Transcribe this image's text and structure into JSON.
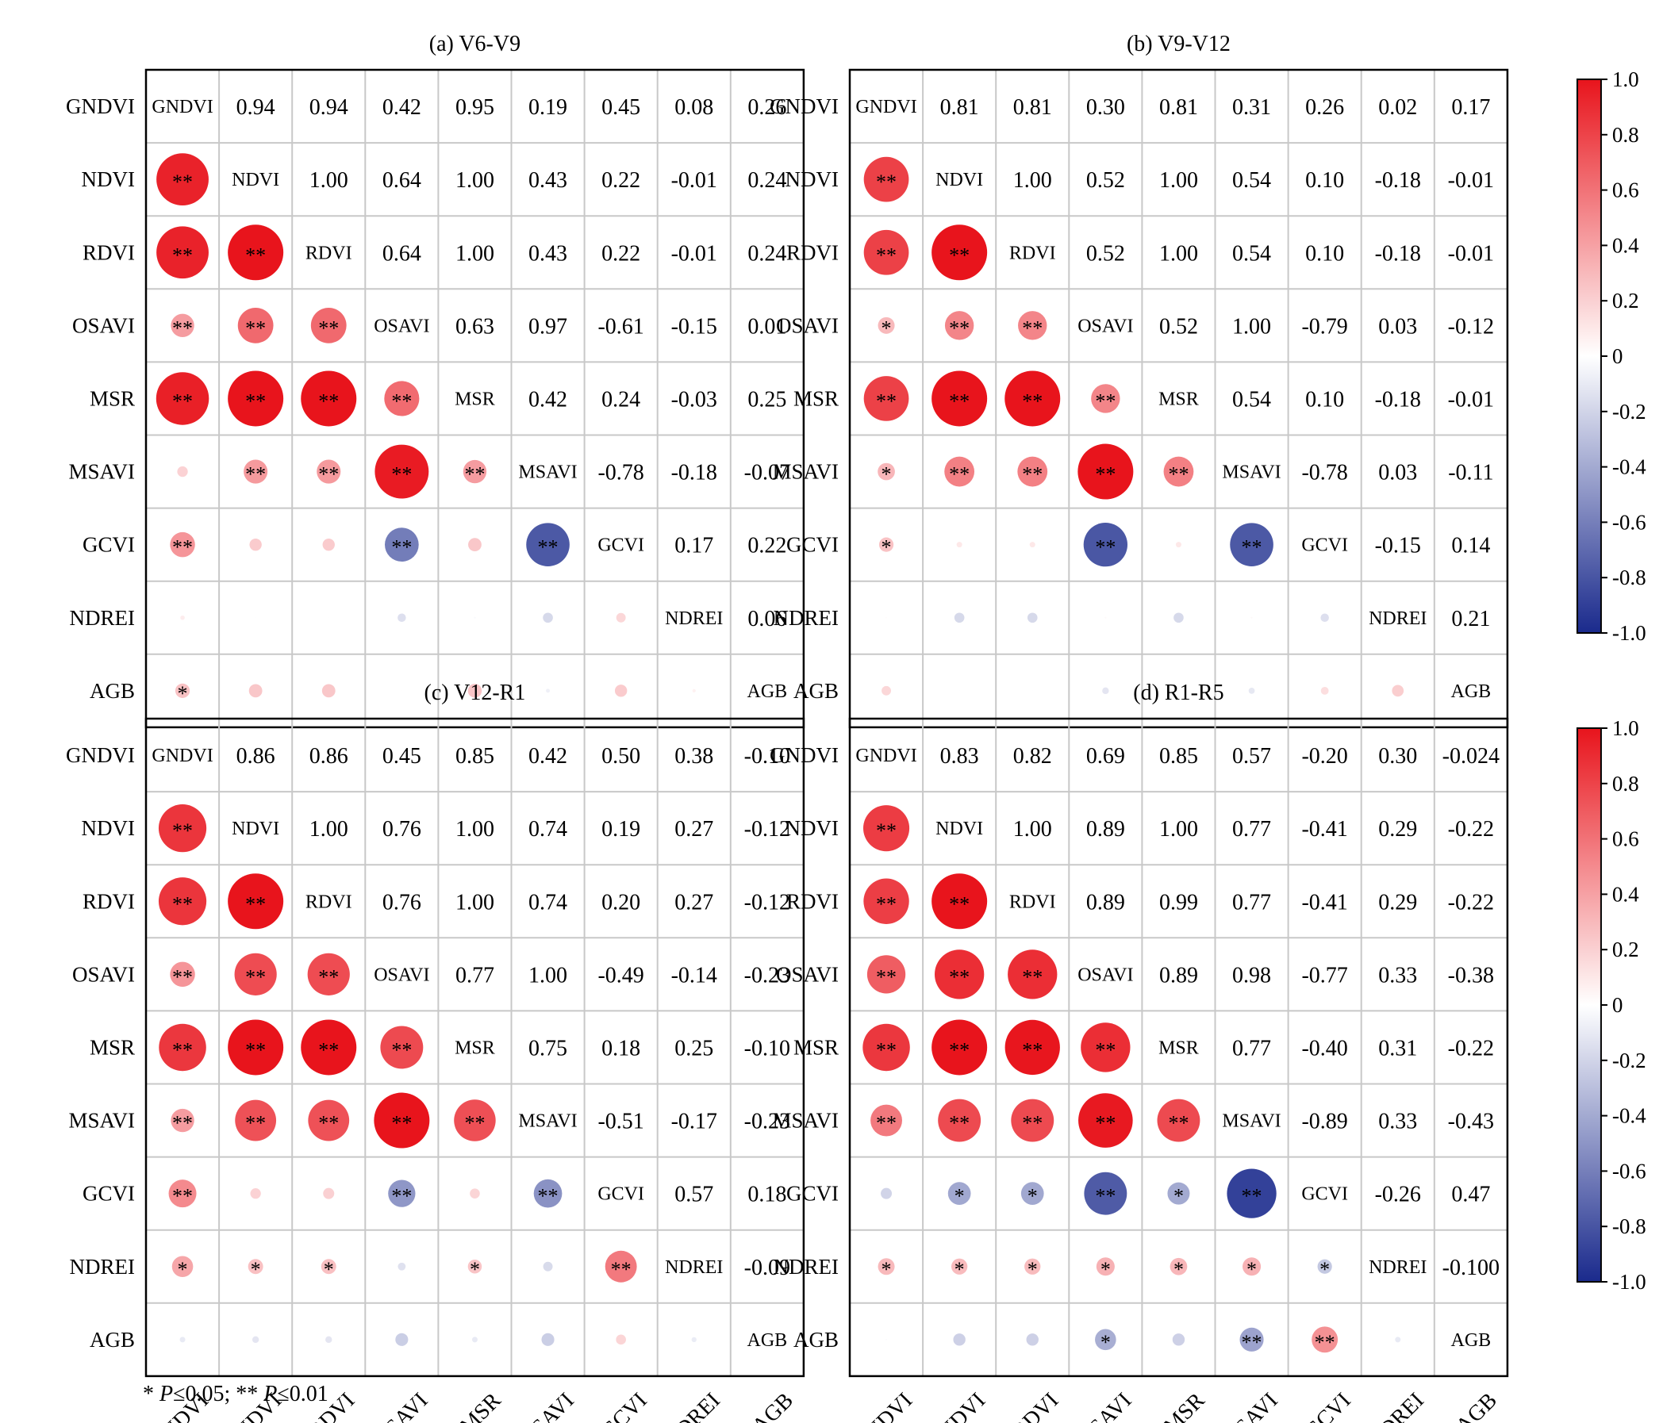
{
  "chart_data": {
    "type": "heatmap",
    "variables": [
      "GNDVI",
      "NDVI",
      "RDVI",
      "OSAVI",
      "MSR",
      "MSAVI",
      "GCVI",
      "NDREI",
      "AGB"
    ],
    "color_scale": {
      "min": -1.0,
      "max": 1.0,
      "low": "#1a2a8c",
      "mid": "#ffffff",
      "high": "#e8141c"
    },
    "colorbar_ticks": [
      "1.0",
      "0.8",
      "0.6",
      "0.4",
      "0.2",
      "0",
      "-0.2",
      "-0.4",
      "-0.6",
      "-0.8",
      "-1.0"
    ],
    "panels": [
      {
        "title": "(a) V6-V9",
        "show_colorbar": false,
        "upper": [
          [
            "0.94",
            "0.94",
            "0.42",
            "0.95",
            "0.19",
            "0.45",
            "0.08",
            "0.26"
          ],
          [
            "1.00",
            "0.64",
            "1.00",
            "0.43",
            "0.22",
            "-0.01",
            "0.24"
          ],
          [
            "0.64",
            "1.00",
            "0.43",
            "0.22",
            "-0.01",
            "0.24"
          ],
          [
            "0.63",
            "0.97",
            "-0.61",
            "-0.15",
            "0.01"
          ],
          [
            "0.42",
            "0.24",
            "-0.03",
            "0.25"
          ],
          [
            "-0.78",
            "-0.18",
            "-0.07"
          ],
          [
            "0.17",
            "0.22"
          ],
          [
            "0.06"
          ]
        ],
        "sig": [
          [],
          [
            "**"
          ],
          [
            "**",
            "**"
          ],
          [
            "**",
            "**",
            "**"
          ],
          [
            "**",
            "**",
            "**",
            "**"
          ],
          [
            "",
            "**",
            "**",
            "**",
            "**"
          ],
          [
            "**",
            "",
            "",
            "**",
            "",
            "**"
          ],
          [
            "",
            "",
            "",
            "",
            "",
            "",
            ""
          ],
          [
            "*",
            "",
            "",
            "",
            "",
            "",
            "",
            ""
          ]
        ]
      },
      {
        "title": "(b) V9-V12",
        "show_colorbar": true,
        "upper": [
          [
            "0.81",
            "0.81",
            "0.30",
            "0.81",
            "0.31",
            "0.26",
            "0.02",
            "0.17"
          ],
          [
            "1.00",
            "0.52",
            "1.00",
            "0.54",
            "0.10",
            "-0.18",
            "-0.01"
          ],
          [
            "0.52",
            "1.00",
            "0.54",
            "0.10",
            "-0.18",
            "-0.01"
          ],
          [
            "0.52",
            "1.00",
            "-0.79",
            "0.03",
            "-0.12"
          ],
          [
            "0.54",
            "0.10",
            "-0.18",
            "-0.01"
          ],
          [
            "-0.78",
            "0.03",
            "-0.11"
          ],
          [
            "-0.15",
            "0.14"
          ],
          [
            "0.21"
          ]
        ],
        "sig": [
          [],
          [
            "**"
          ],
          [
            "**",
            "**"
          ],
          [
            "*",
            "**",
            "**"
          ],
          [
            "**",
            "**",
            "**",
            "**"
          ],
          [
            "*",
            "**",
            "**",
            "**",
            "**"
          ],
          [
            "*",
            "",
            "",
            "**",
            "",
            "**"
          ],
          [
            "",
            "",
            "",
            "",
            "",
            "",
            ""
          ],
          [
            "",
            "",
            "",
            "",
            "",
            "",
            "",
            ""
          ]
        ]
      },
      {
        "title": "(c) V12-R1",
        "show_colorbar": false,
        "upper": [
          [
            "0.86",
            "0.86",
            "0.45",
            "0.85",
            "0.42",
            "0.50",
            "0.38",
            "-0.10"
          ],
          [
            "1.00",
            "0.76",
            "1.00",
            "0.74",
            "0.19",
            "0.27",
            "-0.12"
          ],
          [
            "0.76",
            "1.00",
            "0.74",
            "0.20",
            "0.27",
            "-0.12"
          ],
          [
            "0.77",
            "1.00",
            "-0.49",
            "-0.14",
            "-0.23"
          ],
          [
            "0.75",
            "0.18",
            "0.25",
            "-0.10"
          ],
          [
            "-0.51",
            "-0.17",
            "-0.23"
          ],
          [
            "0.57",
            "0.18"
          ],
          [
            "-0.09"
          ]
        ],
        "sig": [
          [],
          [
            "**"
          ],
          [
            "**",
            "**"
          ],
          [
            "**",
            "**",
            "**"
          ],
          [
            "**",
            "**",
            "**",
            "**"
          ],
          [
            "**",
            "**",
            "**",
            "**",
            "**"
          ],
          [
            "**",
            "",
            "",
            "**",
            "",
            "**"
          ],
          [
            "*",
            "*",
            "*",
            "",
            "*",
            "",
            "**"
          ],
          [
            "",
            "",
            "",
            "",
            "",
            "",
            "",
            ""
          ]
        ]
      },
      {
        "title": "(d) R1-R5",
        "show_colorbar": true,
        "upper": [
          [
            "0.83",
            "0.82",
            "0.69",
            "0.85",
            "0.57",
            "-0.20",
            "0.30",
            "-0.024"
          ],
          [
            "1.00",
            "0.89",
            "1.00",
            "0.77",
            "-0.41",
            "0.29",
            "-0.22"
          ],
          [
            "0.89",
            "0.99",
            "0.77",
            "-0.41",
            "0.29",
            "-0.22"
          ],
          [
            "0.89",
            "0.98",
            "-0.77",
            "0.33",
            "-0.38"
          ],
          [
            "0.77",
            "-0.40",
            "0.31",
            "-0.22"
          ],
          [
            "-0.89",
            "0.33",
            "-0.43"
          ],
          [
            "-0.26",
            "0.47"
          ],
          [
            "-0.100"
          ]
        ],
        "sig": [
          [],
          [
            "**"
          ],
          [
            "**",
            "**"
          ],
          [
            "**",
            "**",
            "**"
          ],
          [
            "**",
            "**",
            "**",
            "**"
          ],
          [
            "**",
            "**",
            "**",
            "**",
            "**"
          ],
          [
            "",
            "*",
            "*",
            "**",
            "*",
            "**"
          ],
          [
            "*",
            "*",
            "*",
            "*",
            "*",
            "*",
            "*"
          ],
          [
            "",
            "",
            "",
            "*",
            "",
            "**",
            "**",
            ""
          ]
        ]
      }
    ]
  },
  "footnote": {
    "part1": "* ",
    "p1": "P",
    "part2": "≤0.05; ** ",
    "p2": "P",
    "part3": "≤0.01"
  }
}
